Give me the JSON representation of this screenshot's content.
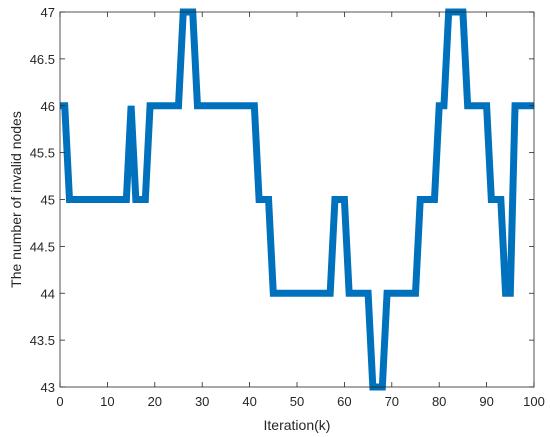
{
  "chart_data": {
    "type": "line",
    "title": "",
    "xlabel": "Iteration(k)",
    "ylabel": "The number of invalid nodes",
    "xlim": [
      0,
      100
    ],
    "ylim": [
      43,
      47
    ],
    "xticks": [
      0,
      10,
      20,
      30,
      40,
      50,
      60,
      70,
      80,
      90,
      100
    ],
    "yticks": [
      43,
      43.5,
      44,
      44.5,
      45,
      45.5,
      46,
      46.5,
      47
    ],
    "xtick_labels": [
      "0",
      "10",
      "20",
      "30",
      "40",
      "50",
      "60",
      "70",
      "80",
      "90",
      "100"
    ],
    "ytick_labels": [
      "43",
      "43.5",
      "44",
      "44.5",
      "45",
      "45.5",
      "46",
      "46.5",
      "47"
    ],
    "grid": false,
    "series": [
      {
        "color": "#0072BD",
        "x": [
          0,
          1,
          2,
          14,
          15,
          16,
          18,
          19,
          25,
          26,
          27,
          28,
          29,
          41,
          42,
          43,
          44,
          45,
          57,
          58,
          59,
          60,
          61,
          64,
          65,
          66,
          67,
          68,
          69,
          75,
          76,
          78,
          79,
          80,
          81,
          82,
          84,
          85,
          86,
          89,
          90,
          91,
          92,
          93,
          94,
          95,
          96,
          97,
          100
        ],
        "y": [
          46,
          46,
          45,
          45,
          46,
          45,
          45,
          46,
          46,
          47,
          47,
          47,
          46,
          46,
          45,
          45,
          45,
          44,
          44,
          45,
          45,
          45,
          44,
          44,
          44,
          43,
          43,
          43,
          44,
          44,
          45,
          45,
          45,
          46,
          46,
          47,
          47,
          47,
          46,
          46,
          46,
          45,
          45,
          45,
          44,
          44,
          46,
          46,
          46
        ]
      }
    ]
  }
}
